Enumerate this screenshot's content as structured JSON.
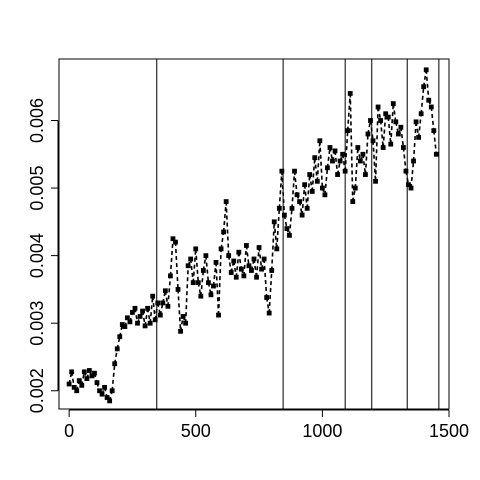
{
  "chart_data": {
    "type": "scatter",
    "title": "",
    "xlabel": "",
    "ylabel": "",
    "xlim": [
      -40,
      1500
    ],
    "ylim": [
      0.00173,
      0.00691
    ],
    "grid": false,
    "x_ticks": [
      0,
      500,
      1000,
      1500
    ],
    "x_tick_labels": [
      "0",
      "500",
      "1000",
      "1500"
    ],
    "y_ticks": [
      0.002,
      0.003,
      0.004,
      0.005,
      0.006
    ],
    "y_tick_labels": [
      "0.002",
      "0.003",
      "0.004",
      "0.005",
      "0.006"
    ],
    "vertical_lines_x": [
      346,
      845,
      1090,
      1195,
      1335,
      1460
    ],
    "connect_points": "dashed",
    "series": [
      {
        "x": [
          0,
          10,
          20,
          30,
          40,
          50,
          60,
          70,
          80,
          90,
          100,
          110,
          120,
          130,
          140,
          150,
          160,
          170,
          180,
          190,
          200,
          210,
          220,
          230,
          240,
          250,
          260,
          270,
          280,
          290,
          300,
          310,
          320,
          330,
          340,
          350,
          360,
          370,
          380,
          390,
          400,
          410,
          420,
          430,
          440,
          450,
          460,
          470,
          480,
          490,
          500,
          510,
          520,
          530,
          540,
          550,
          560,
          570,
          580,
          590,
          600,
          610,
          620,
          630,
          640,
          650,
          660,
          670,
          680,
          690,
          700,
          710,
          720,
          730,
          740,
          750,
          760,
          770,
          780,
          790,
          800,
          810,
          820,
          830,
          840,
          850,
          860,
          870,
          880,
          890,
          900,
          910,
          920,
          930,
          940,
          950,
          960,
          970,
          980,
          990,
          1000,
          1010,
          1020,
          1030,
          1040,
          1050,
          1060,
          1070,
          1080,
          1090,
          1100,
          1110,
          1120,
          1130,
          1140,
          1150,
          1160,
          1170,
          1180,
          1190,
          1200,
          1210,
          1220,
          1230,
          1240,
          1250,
          1260,
          1270,
          1280,
          1290,
          1300,
          1310,
          1320,
          1330,
          1340,
          1350,
          1360,
          1370,
          1380,
          1390,
          1400,
          1410,
          1420,
          1430,
          1440,
          1450
        ],
        "y": [
          0.0021,
          0.00228,
          0.00205,
          0.002,
          0.00215,
          0.00208,
          0.00228,
          0.00218,
          0.0023,
          0.00222,
          0.00226,
          0.00212,
          0.002,
          0.00195,
          0.00205,
          0.0019,
          0.00185,
          0.002,
          0.0024,
          0.00262,
          0.0028,
          0.00298,
          0.00295,
          0.00308,
          0.00302,
          0.00316,
          0.00322,
          0.003,
          0.0031,
          0.00318,
          0.00296,
          0.00322,
          0.003,
          0.0034,
          0.00305,
          0.0033,
          0.00312,
          0.0033,
          0.00348,
          0.00325,
          0.0037,
          0.00425,
          0.0042,
          0.0035,
          0.00288,
          0.0031,
          0.003,
          0.00385,
          0.00395,
          0.0036,
          0.0041,
          0.0036,
          0.0034,
          0.00378,
          0.004,
          0.0036,
          0.00342,
          0.00355,
          0.0039,
          0.00312,
          0.0041,
          0.00435,
          0.0048,
          0.004,
          0.00375,
          0.00392,
          0.00368,
          0.00405,
          0.0038,
          0.0037,
          0.00415,
          0.00385,
          0.00378,
          0.00395,
          0.00368,
          0.00412,
          0.0038,
          0.00395,
          0.00338,
          0.00315,
          0.00378,
          0.0045,
          0.0041,
          0.0047,
          0.00525,
          0.0046,
          0.0044,
          0.0043,
          0.0047,
          0.00525,
          0.0049,
          0.0048,
          0.0046,
          0.00505,
          0.0047,
          0.0052,
          0.00495,
          0.00545,
          0.0051,
          0.0057,
          0.005,
          0.0049,
          0.0053,
          0.0056,
          0.0054,
          0.00555,
          0.0052,
          0.0054,
          0.0055,
          0.00525,
          0.00585,
          0.0064,
          0.0048,
          0.005,
          0.0056,
          0.0054,
          0.0055,
          0.0052,
          0.0058,
          0.006,
          0.0057,
          0.0051,
          0.0062,
          0.006,
          0.0056,
          0.0061,
          0.00605,
          0.00565,
          0.00625,
          0.00598,
          0.0058,
          0.0059,
          0.0056,
          0.00525,
          0.00505,
          0.005,
          0.0054,
          0.00598,
          0.00575,
          0.0061,
          0.0065,
          0.00675,
          0.0063,
          0.0062,
          0.00585,
          0.0055
        ]
      }
    ]
  }
}
